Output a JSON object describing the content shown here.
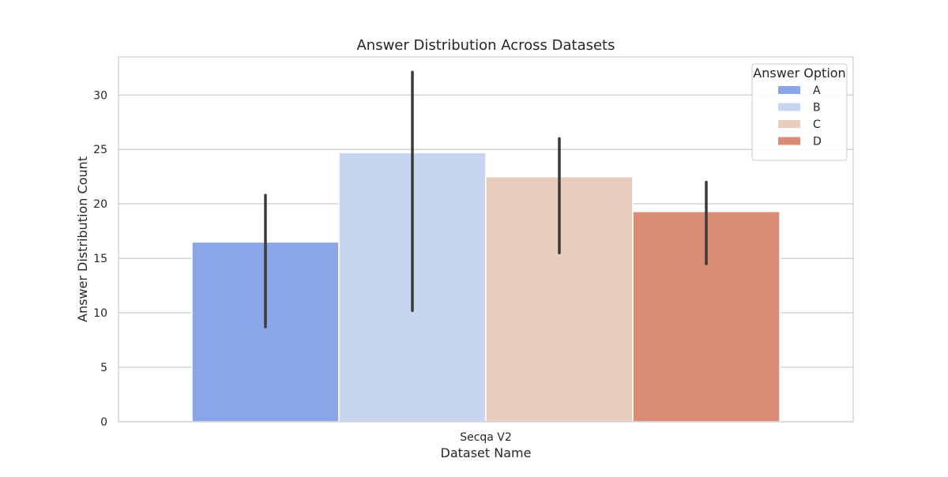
{
  "chart_data": {
    "type": "bar",
    "title": "Answer Distribution Across Datasets",
    "xlabel": "Dataset Name",
    "ylabel": "Answer Distribution Count",
    "categories": [
      "Secqa V2"
    ],
    "ylim": [
      0,
      33.5
    ],
    "yticks": [
      0,
      5,
      10,
      15,
      20,
      25,
      30
    ],
    "grid": true,
    "legend": {
      "title": "Answer Option",
      "placement": "top-right"
    },
    "series": [
      {
        "name": "A",
        "color": "#8aa6e8",
        "values": [
          16.5
        ],
        "error": [
          [
            8.7,
            20.8
          ]
        ]
      },
      {
        "name": "B",
        "color": "#c7d5f0",
        "values": [
          24.7
        ],
        "error": [
          [
            10.2,
            32.1
          ]
        ]
      },
      {
        "name": "C",
        "color": "#e9cdbf",
        "values": [
          22.5
        ],
        "error": [
          [
            15.5,
            26.0
          ]
        ]
      },
      {
        "name": "D",
        "color": "#db8c76",
        "values": [
          19.3
        ],
        "error": [
          [
            14.5,
            22.0
          ]
        ]
      }
    ]
  }
}
